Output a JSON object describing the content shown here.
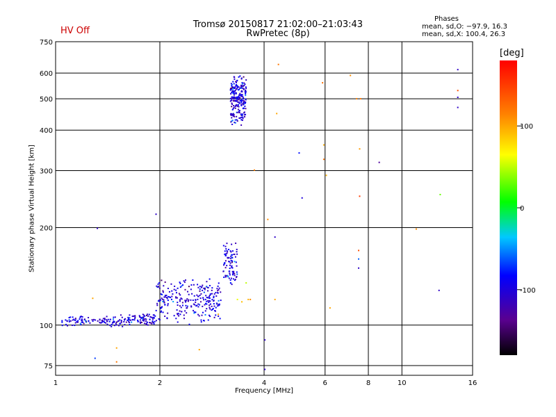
{
  "header": {
    "title": "Tromsø 20150817 21:02:00–21:03:43",
    "subtitle": "RwPretec (8p)",
    "status": "HV Off",
    "legend_title": "Phases",
    "legend_o": "mean, sd,O: −97.9, 16.3",
    "legend_x": "mean, sd,X: 100.4, 26.3"
  },
  "chart_data": {
    "type": "scatter",
    "title": "Tromsø 20150817 21:02:00–21:03:43",
    "subtitle": "RwPretec (8p)",
    "xlabel": "Frequency [MHz]",
    "ylabel": "Stationary phase Virtual Height [km]",
    "x_scale": "log",
    "y_scale": "log",
    "xlim": [
      1,
      16
    ],
    "ylim": [
      70,
      750
    ],
    "x_ticks": [
      1,
      2,
      4,
      6,
      8,
      10,
      16
    ],
    "y_ticks": [
      75,
      100,
      200,
      300,
      400,
      500,
      600,
      750
    ],
    "grid": true,
    "colorbar": {
      "label": "[deg]",
      "range": [
        -180,
        180
      ],
      "ticks": [
        100,
        0,
        -100
      ]
    },
    "series": [
      {
        "name": "O",
        "color": "#1a1ad9",
        "clusters": [
          {
            "x_range": [
              1.04,
              1.6
            ],
            "y_center": 103,
            "y_spread": 3,
            "count": 110
          },
          {
            "x_range": [
              1.6,
              1.95
            ],
            "y_center": 104,
            "y_spread": 3,
            "count": 80
          },
          {
            "x_range": [
              1.95,
              3.0
            ],
            "y_center": 120,
            "y_spread": 13,
            "count": 260
          },
          {
            "x_range": [
              3.05,
              3.35
            ],
            "y_center": 155,
            "y_spread": 17,
            "count": 90
          },
          {
            "x_range": [
              3.2,
              3.55
            ],
            "y_center": 500,
            "y_spread": 60,
            "count": 230
          }
        ],
        "points": [
          {
            "x": 1.32,
            "y": 199,
            "phase": -110
          },
          {
            "x": 1.95,
            "y": 220,
            "phase": -110
          },
          {
            "x": 1.3,
            "y": 79,
            "phase": -70
          },
          {
            "x": 4.02,
            "y": 90,
            "phase": -110
          },
          {
            "x": 4.02,
            "y": 73,
            "phase": -110
          },
          {
            "x": 4.3,
            "y": 187,
            "phase": -110
          },
          {
            "x": 5.05,
            "y": 340,
            "phase": -80
          },
          {
            "x": 5.15,
            "y": 247,
            "phase": -100
          },
          {
            "x": 7.5,
            "y": 150,
            "phase": -110
          },
          {
            "x": 7.5,
            "y": 160,
            "phase": -60
          },
          {
            "x": 8.6,
            "y": 318,
            "phase": -130
          },
          {
            "x": 12.8,
            "y": 128,
            "phase": -110
          },
          {
            "x": 14.5,
            "y": 615,
            "phase": -110
          },
          {
            "x": 14.5,
            "y": 505,
            "phase": -110
          },
          {
            "x": 14.5,
            "y": 470,
            "phase": -110
          }
        ]
      },
      {
        "name": "X",
        "color": "#ff9900",
        "points": [
          {
            "x": 1.28,
            "y": 121,
            "phase": 100
          },
          {
            "x": 1.5,
            "y": 85,
            "phase": 100
          },
          {
            "x": 1.5,
            "y": 77,
            "phase": 120
          },
          {
            "x": 2.6,
            "y": 84,
            "phase": 100
          },
          {
            "x": 2.95,
            "y": 108,
            "phase": 100
          },
          {
            "x": 3.45,
            "y": 118,
            "phase": 90
          },
          {
            "x": 3.6,
            "y": 120,
            "phase": 95
          },
          {
            "x": 3.65,
            "y": 120,
            "phase": 110
          },
          {
            "x": 3.75,
            "y": 301,
            "phase": 115
          },
          {
            "x": 4.1,
            "y": 212,
            "phase": 110
          },
          {
            "x": 4.3,
            "y": 120,
            "phase": 100
          },
          {
            "x": 4.35,
            "y": 450,
            "phase": 100
          },
          {
            "x": 4.4,
            "y": 638,
            "phase": 120
          },
          {
            "x": 5.9,
            "y": 560,
            "phase": 125
          },
          {
            "x": 5.95,
            "y": 360,
            "phase": 100
          },
          {
            "x": 5.95,
            "y": 325,
            "phase": 125
          },
          {
            "x": 6.05,
            "y": 290,
            "phase": 95
          },
          {
            "x": 6.2,
            "y": 113,
            "phase": 100
          },
          {
            "x": 7.1,
            "y": 590,
            "phase": 110
          },
          {
            "x": 7.4,
            "y": 500,
            "phase": 115
          },
          {
            "x": 7.6,
            "y": 500,
            "phase": 120
          },
          {
            "x": 7.55,
            "y": 350,
            "phase": 105
          },
          {
            "x": 7.55,
            "y": 250,
            "phase": 150
          },
          {
            "x": 7.5,
            "y": 170,
            "phase": 140
          },
          {
            "x": 11.0,
            "y": 198,
            "phase": 110
          },
          {
            "x": 12.9,
            "y": 253,
            "phase": 30
          },
          {
            "x": 14.5,
            "y": 530,
            "phase": 140
          },
          {
            "x": 3.55,
            "y": 135,
            "phase": 50
          },
          {
            "x": 3.35,
            "y": 120,
            "phase": 60
          }
        ]
      }
    ]
  }
}
